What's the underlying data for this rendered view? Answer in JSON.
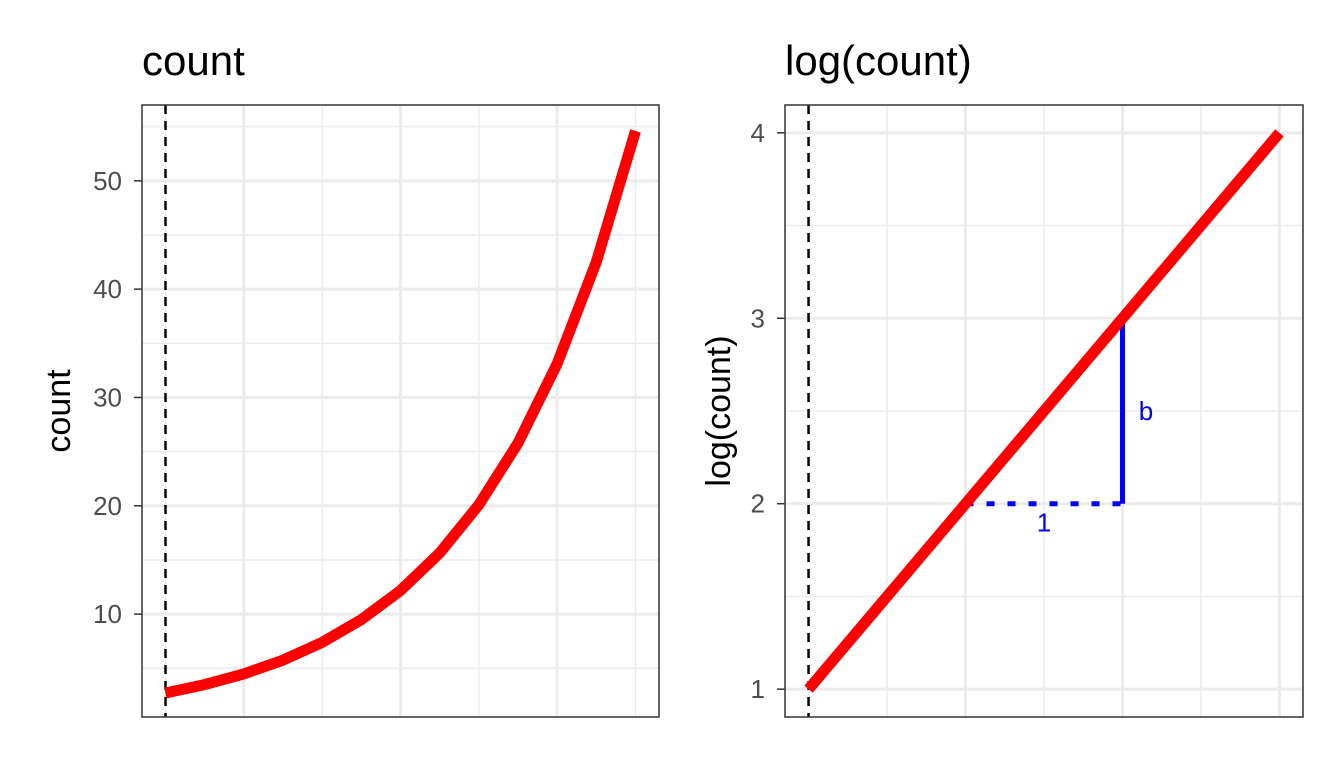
{
  "chart_data": [
    {
      "type": "line",
      "title": "count",
      "xlabel": "",
      "ylabel": "count",
      "xlim": [
        -0.15,
        3.15
      ],
      "ylim": [
        0.5,
        57
      ],
      "yticks": [
        10,
        20,
        30,
        40,
        50
      ],
      "xgrid_major": [
        0.5,
        1.5,
        2.5
      ],
      "xgrid_minor": [
        0,
        1,
        2,
        3
      ],
      "ygrid_minor": [
        5,
        15,
        25,
        35,
        45,
        55
      ],
      "grid": true,
      "vline": {
        "x": 0,
        "style": "dashed",
        "color": "#000000"
      },
      "series": [
        {
          "color": "#ff0000",
          "x": [
            0,
            0.25,
            0.5,
            0.75,
            1,
            1.25,
            1.5,
            1.75,
            2,
            2.25,
            2.5,
            2.75,
            3
          ],
          "y": [
            2.72,
            3.49,
            4.48,
            5.75,
            7.39,
            9.49,
            12.18,
            15.64,
            20.09,
            25.79,
            33.12,
            42.52,
            54.6
          ]
        }
      ]
    },
    {
      "type": "line",
      "title": "log(count)",
      "xlabel": "",
      "ylabel": "log(count)",
      "xlim": [
        -0.15,
        3.15
      ],
      "ylim": [
        0.85,
        4.15
      ],
      "yticks": [
        1,
        2,
        3,
        4
      ],
      "xgrid_major": [
        1,
        2,
        3
      ],
      "xgrid_minor": [
        0.5,
        1.5,
        2.5
      ],
      "ygrid_minor": [
        1.5,
        2.5,
        3.5
      ],
      "grid": true,
      "vline": {
        "x": 0,
        "style": "dashed",
        "color": "#000000"
      },
      "series": [
        {
          "color": "#ff0000",
          "x": [
            0,
            3
          ],
          "y": [
            1,
            4
          ]
        }
      ],
      "annotations": [
        {
          "type": "segment",
          "style": "dotted",
          "color": "#0000ff",
          "from": [
            1,
            2
          ],
          "to": [
            2,
            2
          ],
          "label": "1",
          "label_at": [
            1.5,
            1.9
          ]
        },
        {
          "type": "segment",
          "style": "solid",
          "color": "#0000ff",
          "from": [
            2,
            2
          ],
          "to": [
            2,
            3
          ],
          "label": "b",
          "label_at": [
            2.15,
            2.5
          ]
        }
      ]
    }
  ]
}
